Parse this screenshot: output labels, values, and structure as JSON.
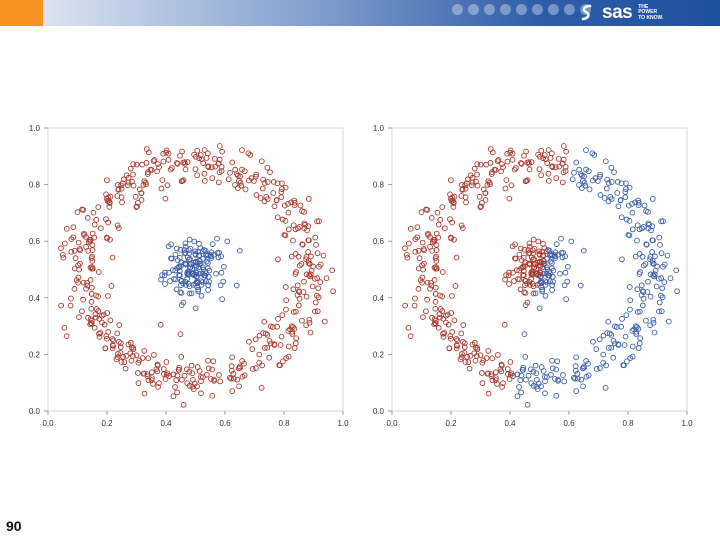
{
  "header": {
    "logo_text": "sas",
    "tagline": [
      "THE",
      "POWER",
      "TO KNOW."
    ]
  },
  "page_number": "90",
  "colors": {
    "red": "#a83a2e",
    "blue": "#3f5ea8",
    "header_orange": "#f7941d",
    "header_blue": "#2f5da8"
  },
  "chart_data": [
    {
      "type": "scatter",
      "title": "",
      "xlabel": "",
      "ylabel": "",
      "xlim": [
        0,
        1
      ],
      "ylim": [
        0,
        1
      ],
      "x_ticks": [
        "0.0",
        "0.2",
        "0.4",
        "0.6",
        "0.8",
        "1.0"
      ],
      "y_ticks": [
        "0.0",
        "0.2",
        "0.4",
        "0.6",
        "0.8",
        "1.0"
      ],
      "grid": false,
      "series": [
        {
          "color": "#a83a2e",
          "shape": "ring",
          "center": [
            0.5,
            0.5
          ],
          "r_inner": 0.3,
          "r_outer": 0.47,
          "n": 520,
          "assign": "all"
        },
        {
          "color": "#3f5ea8",
          "shape": "blob",
          "center": [
            0.5,
            0.5
          ],
          "spread": 0.05,
          "n": 160,
          "assign": "all"
        }
      ]
    },
    {
      "type": "scatter",
      "title": "",
      "xlabel": "",
      "ylabel": "",
      "xlim": [
        0,
        1
      ],
      "ylim": [
        0,
        1
      ],
      "x_ticks": [
        "0.0",
        "0.2",
        "0.4",
        "0.6",
        "0.8",
        "1.0"
      ],
      "y_ticks": [
        "0.0",
        "0.2",
        "0.4",
        "0.6",
        "0.8",
        "1.0"
      ],
      "grid": false,
      "series": [
        {
          "color": "#a83a2e",
          "shape": "ring",
          "center": [
            0.5,
            0.5
          ],
          "r_inner": 0.3,
          "r_outer": 0.47,
          "n": 520,
          "assign": "left_split"
        },
        {
          "color": "#3f5ea8",
          "shape": "blob",
          "center": [
            0.5,
            0.5
          ],
          "spread": 0.05,
          "n": 160,
          "assign": "left_split"
        }
      ],
      "split_line": {
        "x1": 0.42,
        "y1": 0.18,
        "x2": 0.62,
        "y2": 0.9
      }
    }
  ]
}
